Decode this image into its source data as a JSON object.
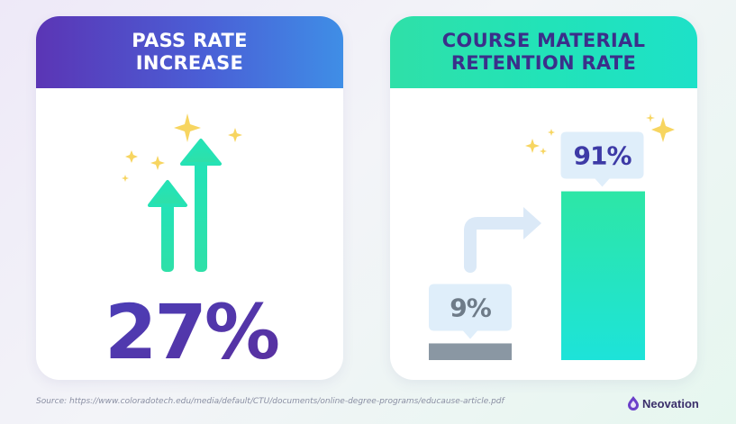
{
  "pass_rate": {
    "title_lines": [
      "PASS RATE",
      "INCREASE"
    ],
    "value_label": "27%"
  },
  "chart_data": {
    "type": "bar",
    "title_lines": [
      "COURSE MATERIAL",
      "RETENTION RATE"
    ],
    "categories": [
      "",
      ""
    ],
    "values": [
      9,
      91
    ],
    "value_labels": [
      "9%",
      "91%"
    ],
    "ylim": [
      0,
      100
    ],
    "grid": false,
    "colors": [
      "#8a97a3",
      "#1fe6c4"
    ]
  },
  "footer": {
    "source": "Source: https://www.coloradotech.edu/media/default/CTU/documents/online-degree-programs/educause-article.pdf",
    "brand": "Neovation"
  },
  "colors": {
    "purple": "#5b35b5",
    "blue": "#3f8ee6",
    "green": "#2fe0a8",
    "navy": "#3b2f8a",
    "sparkle": "#f7d560"
  },
  "icons": [
    "sparkle-icon",
    "up-arrow-icon",
    "turn-right-arrow-icon",
    "neovation-logo-icon"
  ]
}
